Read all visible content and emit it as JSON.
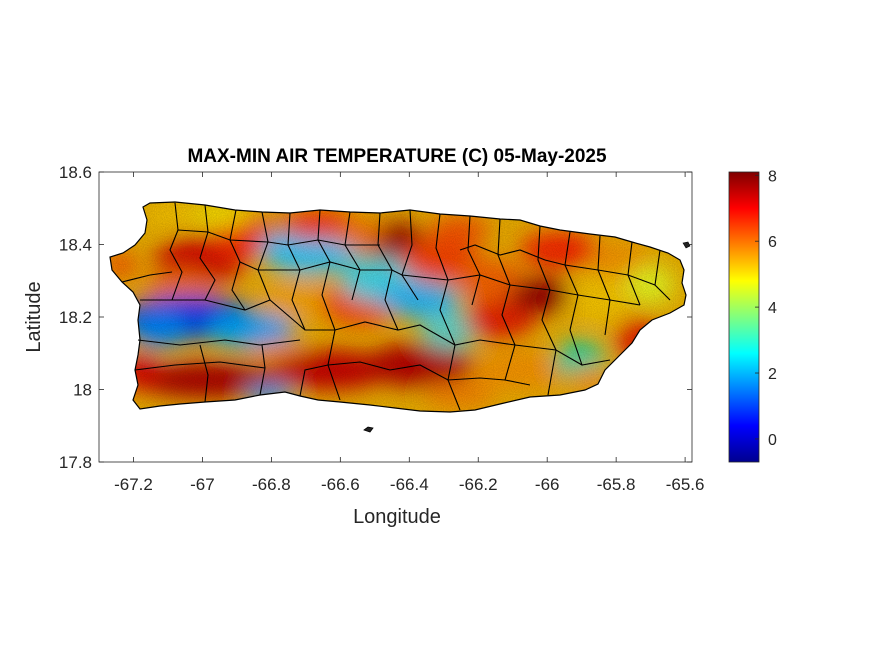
{
  "chart_data": {
    "type": "heatmap",
    "title": "MAX-MIN AIR TEMPERATURE (C) 05-May-2025",
    "xlabel": "Longitude",
    "ylabel": "Latitude",
    "xlim": [
      -67.3,
      -65.58
    ],
    "ylim": [
      17.8,
      18.6
    ],
    "x_ticks": [
      -67.2,
      -67,
      -66.8,
      -66.6,
      -66.4,
      -66.2,
      -66,
      -65.8,
      -65.6
    ],
    "x_tick_labels": [
      "-67.2",
      "-67",
      "-66.8",
      "-66.6",
      "-66.4",
      "-66.2",
      "-66",
      "-65.8",
      "-65.6"
    ],
    "y_ticks": [
      18.6,
      18.4,
      18.2,
      18,
      17.8
    ],
    "y_tick_labels": [
      "18.6",
      "18.4",
      "18.2",
      "18",
      "17.8"
    ],
    "colorbar": {
      "colormap": "jet",
      "range": [
        -0.7,
        8.1
      ],
      "ticks": [
        8,
        6,
        4,
        2,
        0
      ],
      "tick_labels": [
        "8",
        "6",
        "4",
        "2",
        "0"
      ]
    },
    "grid": false,
    "legend": "none"
  },
  "colors": {
    "outline": "#000000",
    "axis": "#262626"
  }
}
